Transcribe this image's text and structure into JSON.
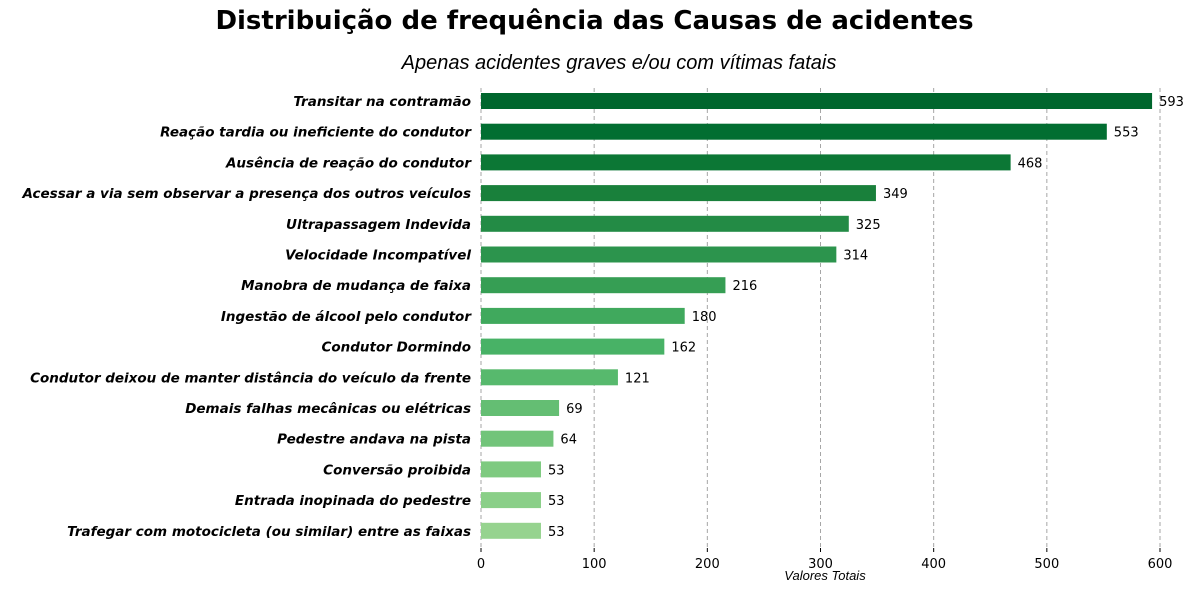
{
  "chart_data": {
    "type": "bar",
    "orientation": "horizontal",
    "title": "Distribuição de frequência das Causas de acidentes",
    "subtitle": "Apenas acidentes graves e/ou com vítimas fatais",
    "xlabel": "Valores Totais",
    "ylabel": "",
    "xlim": [
      0,
      600
    ],
    "xticks": [
      0,
      100,
      200,
      300,
      400,
      500,
      600
    ],
    "grid": "vertical dashed",
    "categories": [
      "Transitar na contramão",
      "Reação tardia ou ineficiente do condutor",
      "Ausência de reação do condutor",
      "Acessar a via sem observar a presença dos outros veículos",
      "Ultrapassagem Indevida",
      "Velocidade Incompatível",
      "Manobra de mudança de faixa",
      "Ingestão de álcool pelo condutor",
      "Condutor Dormindo",
      "Condutor deixou de manter distância do veículo da frente",
      "Demais falhas mecânicas ou elétricas",
      "Pedestre andava na pista",
      "Conversão proibida",
      "Entrada inopinada do pedestre",
      "Trafegar com motocicleta (ou similar) entre as faixas"
    ],
    "values": [
      593,
      553,
      468,
      349,
      325,
      314,
      216,
      180,
      162,
      121,
      69,
      64,
      53,
      53,
      53
    ],
    "colors": [
      "#00662d",
      "#026e31",
      "#0c7735",
      "#19803b",
      "#238b45",
      "#2c944d",
      "#369e54",
      "#40a95d",
      "#48b266",
      "#57b96d",
      "#64be73",
      "#72c47a",
      "#7eca80",
      "#8acf88",
      "#96d38f"
    ]
  }
}
